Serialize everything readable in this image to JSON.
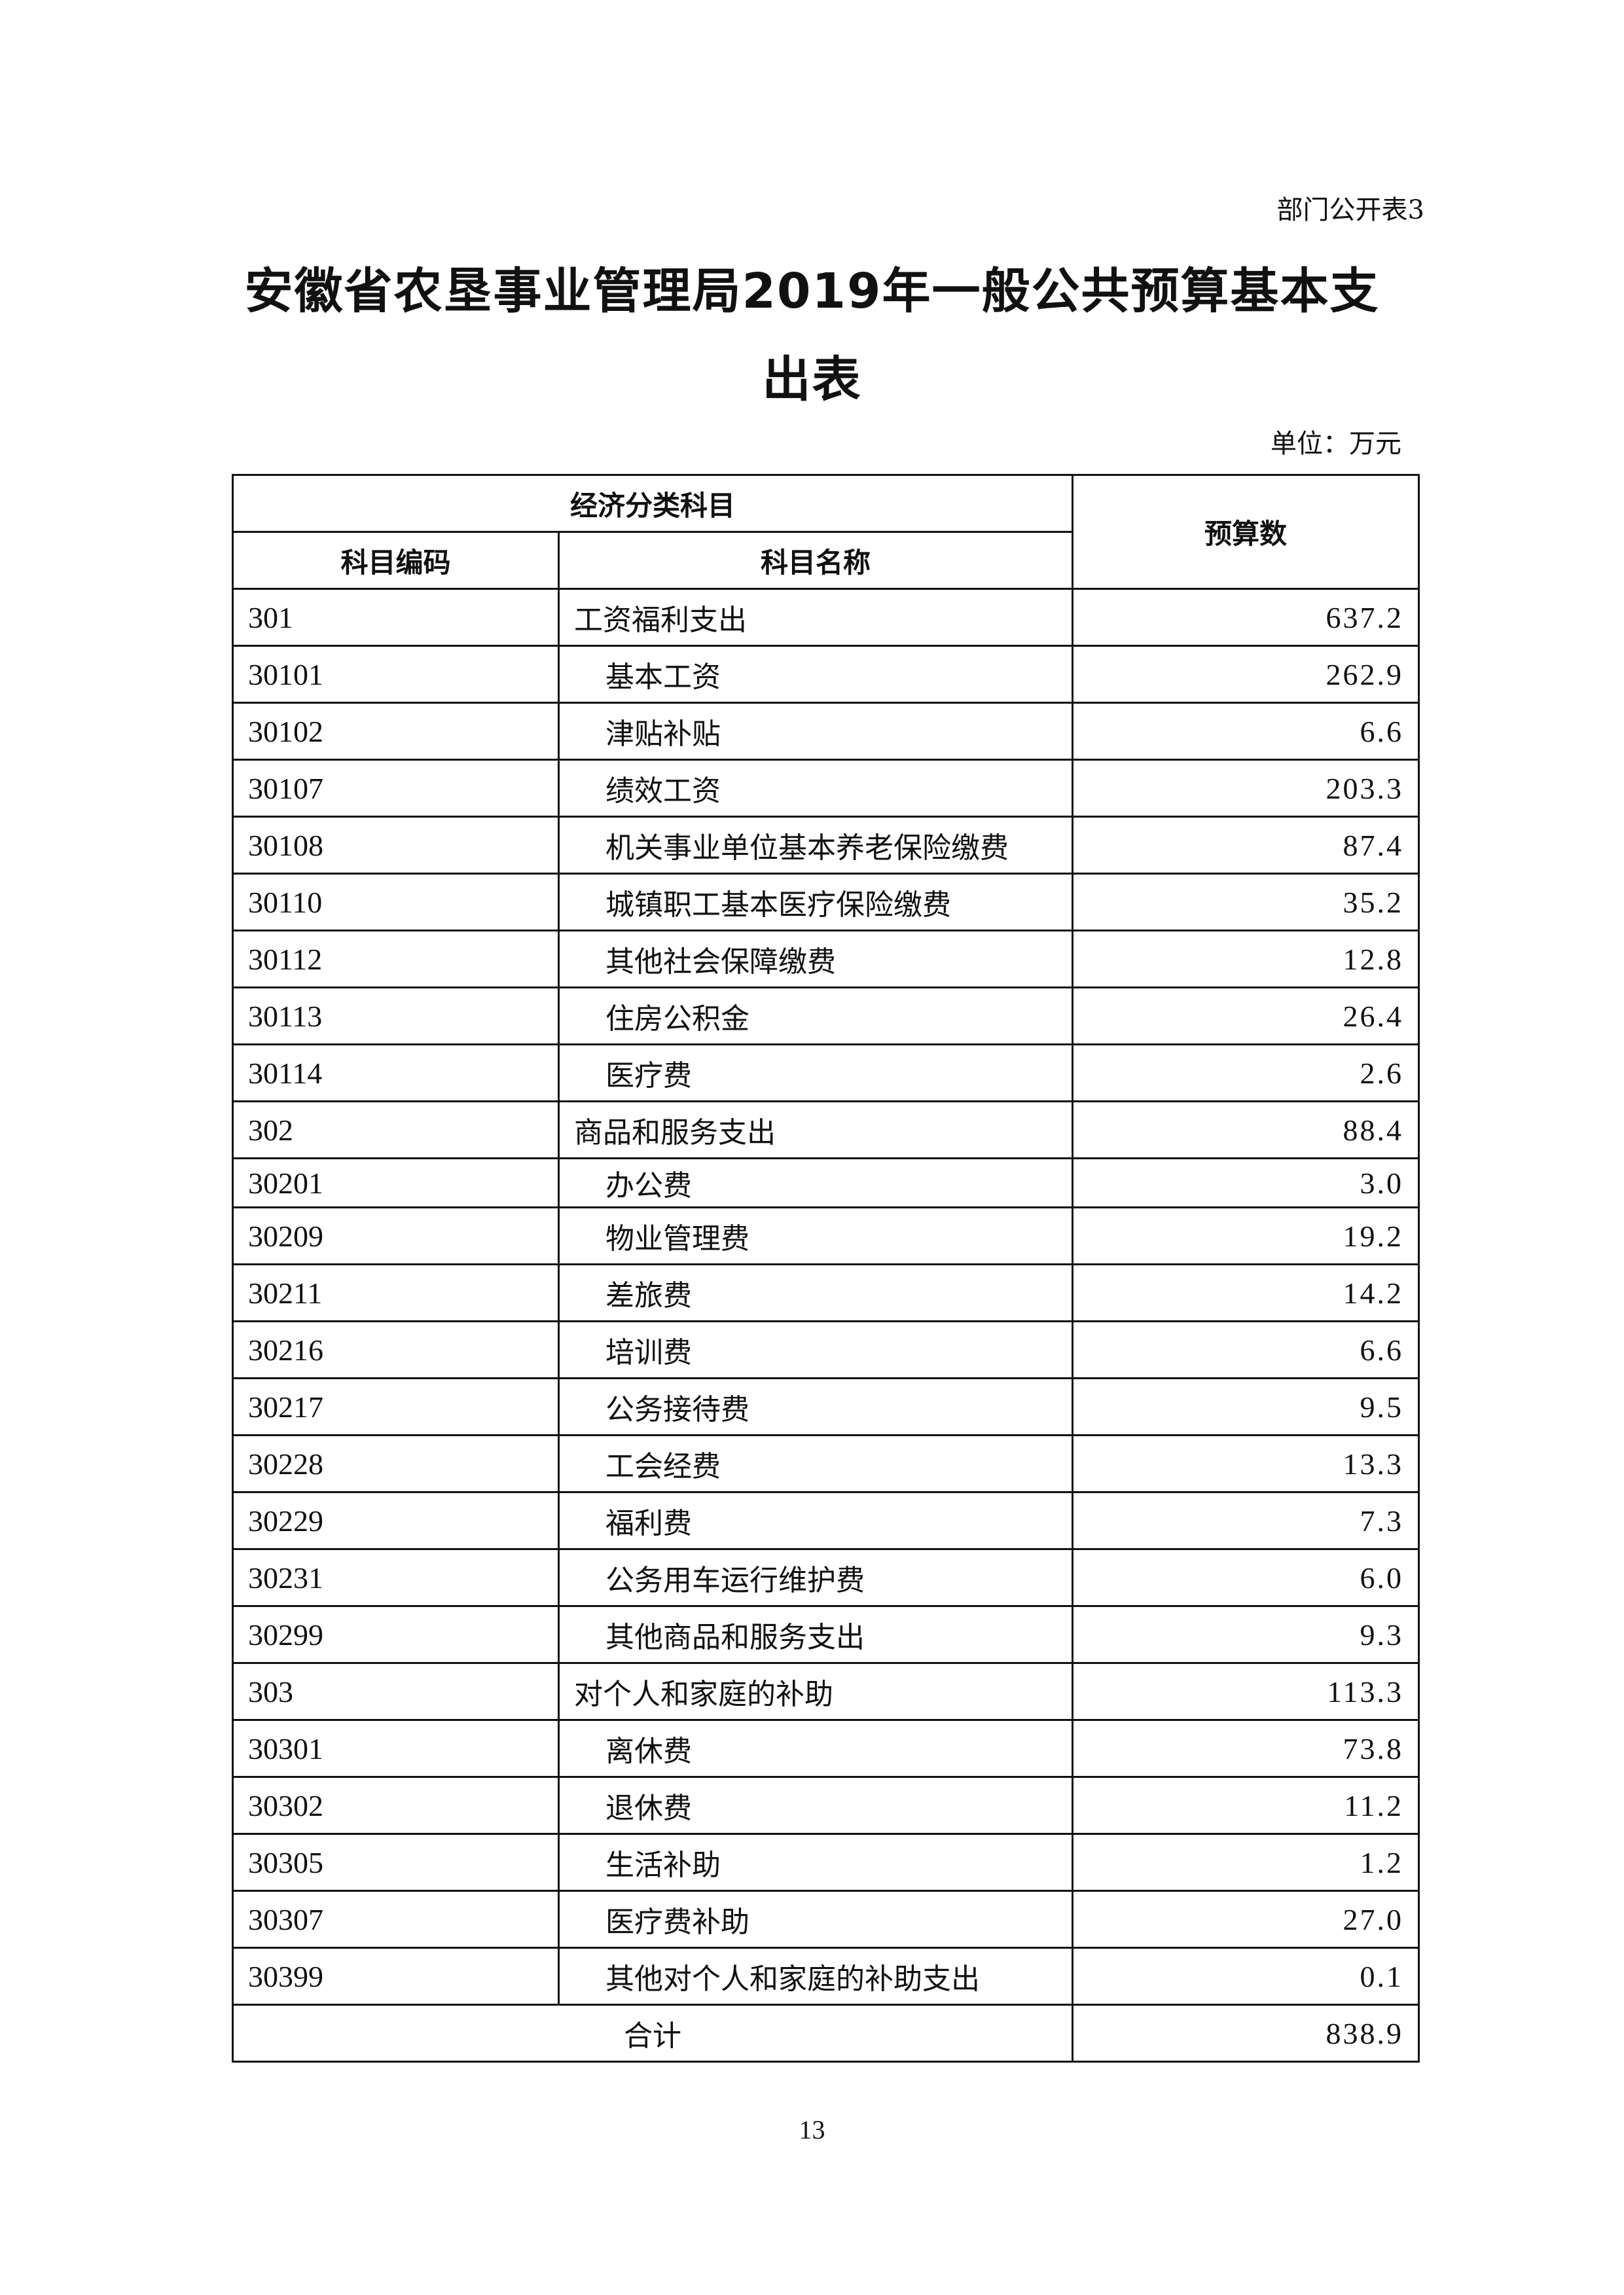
{
  "doc_label": "部门公开表3",
  "title_line1": "安徽省农垦事业管理局2019年一般公共预算基本支",
  "title_line2": "出表",
  "unit": "单位：万元",
  "table": {
    "header_group": "经济分类科目",
    "col_code": "科目编码",
    "col_name": "科目名称",
    "col_value": "预算数",
    "rows": [
      {
        "code": "301",
        "name": "工资福利支出",
        "value": "637.2",
        "level": 1
      },
      {
        "code": "30101",
        "name": "基本工资",
        "value": "262.9",
        "level": 2
      },
      {
        "code": "30102",
        "name": "津贴补贴",
        "value": "6.6",
        "level": 2
      },
      {
        "code": "30107",
        "name": "绩效工资",
        "value": "203.3",
        "level": 2
      },
      {
        "code": "30108",
        "name": "机关事业单位基本养老保险缴费",
        "value": "87.4",
        "level": 2
      },
      {
        "code": "30110",
        "name": "城镇职工基本医疗保险缴费",
        "value": "35.2",
        "level": 2
      },
      {
        "code": "30112",
        "name": "其他社会保障缴费",
        "value": "12.8",
        "level": 2
      },
      {
        "code": "30113",
        "name": "住房公积金",
        "value": "26.4",
        "level": 2
      },
      {
        "code": "30114",
        "name": "医疗费",
        "value": "2.6",
        "level": 2
      },
      {
        "code": "302",
        "name": "商品和服务支出",
        "value": "88.4",
        "level": 1
      },
      {
        "code": "30201",
        "name": "办公费",
        "value": "3.0",
        "level": 2
      },
      {
        "code": "30209",
        "name": "物业管理费",
        "value": "19.2",
        "level": 2
      },
      {
        "code": "30211",
        "name": "差旅费",
        "value": "14.2",
        "level": 2
      },
      {
        "code": "30216",
        "name": "培训费",
        "value": "6.6",
        "level": 2
      },
      {
        "code": "30217",
        "name": "公务接待费",
        "value": "9.5",
        "level": 2
      },
      {
        "code": "30228",
        "name": "工会经费",
        "value": "13.3",
        "level": 2
      },
      {
        "code": "30229",
        "name": "福利费",
        "value": "7.3",
        "level": 2
      },
      {
        "code": "30231",
        "name": "公务用车运行维护费",
        "value": "6.0",
        "level": 2
      },
      {
        "code": "30299",
        "name": "其他商品和服务支出",
        "value": "9.3",
        "level": 2
      },
      {
        "code": "303",
        "name": "对个人和家庭的补助",
        "value": "113.3",
        "level": 1
      },
      {
        "code": "30301",
        "name": "离休费",
        "value": "73.8",
        "level": 2
      },
      {
        "code": "30302",
        "name": "退休费",
        "value": "11.2",
        "level": 2
      },
      {
        "code": "30305",
        "name": "生活补助",
        "value": "1.2",
        "level": 2
      },
      {
        "code": "30307",
        "name": "医疗费补助",
        "value": "27.0",
        "level": 2
      },
      {
        "code": "30399",
        "name": "其他对个人和家庭的补助支出",
        "value": "0.1",
        "level": 2
      }
    ],
    "total_label": "合计",
    "total_value": "838.9"
  },
  "page_number": "13"
}
